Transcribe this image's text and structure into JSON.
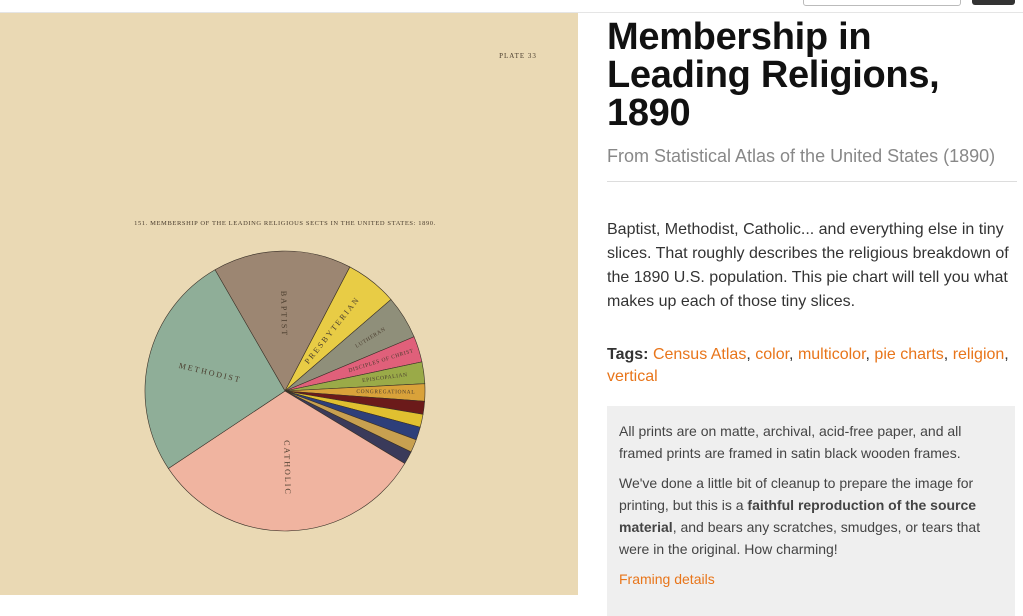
{
  "image": {
    "plate_label": "PLATE 33",
    "caption": "151. MEMBERSHIP OF THE LEADING RELIGIOUS SECTS IN THE UNITED STATES: 1890.",
    "slices": [
      {
        "label": "BAPTIST",
        "value": 16,
        "color": "#9c8672"
      },
      {
        "label": "PRESBYTERIAN",
        "value": 6,
        "color": "#e8cc45"
      },
      {
        "label": "LUTHERAN",
        "value": 5,
        "color": "#8f8f7a"
      },
      {
        "label": "DISCIPLES OF CHRIST",
        "value": 3,
        "color": "#e0607a"
      },
      {
        "label": "EPISCOPALIAN",
        "value": 2.5,
        "color": "#9aaa48"
      },
      {
        "label": "CONGREGATIONAL",
        "value": 2,
        "color": "#d9a23a"
      },
      {
        "value": 1.5,
        "color": "#6b1a1a"
      },
      {
        "value": 1.5,
        "color": "#e0c030"
      },
      {
        "value": 1.5,
        "color": "#2d3f7a"
      },
      {
        "value": 1.5,
        "color": "#c8a050"
      },
      {
        "value": 1.5,
        "color": "#3a3a5a"
      },
      {
        "label": "CATHOLIC",
        "value": 32,
        "color": "#f0b4a0"
      },
      {
        "label": "METHODIST",
        "value": 26,
        "color": "#8fae98"
      }
    ]
  },
  "title": "Membership in Leading Religions, 1890",
  "subtitle": "From Statistical Atlas of the United States (1890)",
  "description": "Baptist, Methodist, Catholic... and everything else in tiny slices. That roughly describes the religious breakdown of the 1890 U.S. population. This pie chart will tell you what makes up each of those tiny slices.",
  "tags": {
    "label": "Tags:",
    "separator": ",",
    "items": [
      "Census Atlas",
      "color",
      "multicolor",
      "pie charts",
      "religion",
      "vertical"
    ]
  },
  "info": {
    "paragraph1": "All prints are on matte, archival, acid-free paper, and all framed prints are framed in satin black wooden frames.",
    "paragraph2": [
      "We've done a little bit of cleanup to prepare the image for printing, but this is a ",
      "faithful reproduction of the source material",
      ", and bears any scratches, smudges, or tears that were in the original. How charming!"
    ],
    "link": "Framing details"
  }
}
